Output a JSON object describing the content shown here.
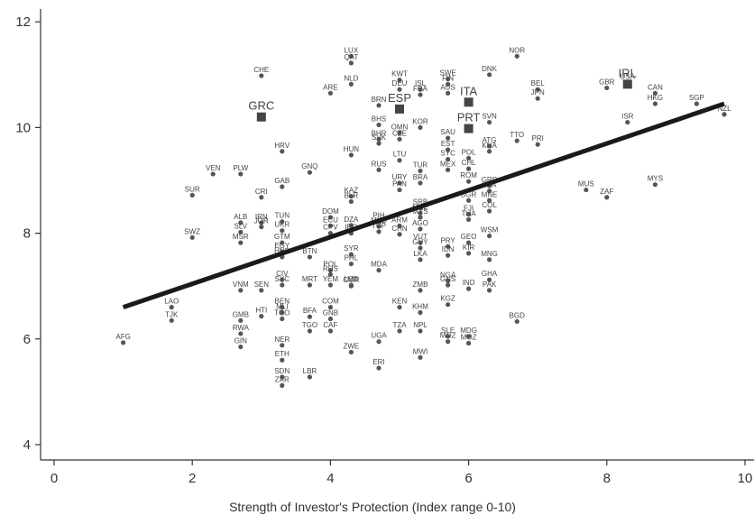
{
  "chart_data": {
    "type": "scatter",
    "title": "",
    "xlabel": "Strength of Investor's Protection (Index range 0-10)",
    "ylabel": "",
    "xlim": [
      -0.2,
      10.2
    ],
    "ylim": [
      3.8,
      12.3
    ],
    "xticks": [
      0,
      2,
      4,
      6,
      8,
      10
    ],
    "yticks": [
      4,
      6,
      8,
      10,
      12
    ],
    "grid": false,
    "point_color": "#555555",
    "highlight_color": "#444444",
    "fit_line_color": "#1a1a1a",
    "fit_line": {
      "x": [
        1.0,
        9.7
      ],
      "y": [
        6.6,
        10.45
      ]
    },
    "points": [
      {
        "label": "AFG",
        "x": 1.0,
        "y": 5.93
      },
      {
        "label": "LAO",
        "x": 1.7,
        "y": 6.6
      },
      {
        "label": "TJK",
        "x": 1.7,
        "y": 6.35
      },
      {
        "label": "SUR",
        "x": 2.0,
        "y": 8.72
      },
      {
        "label": "SWZ",
        "x": 2.0,
        "y": 7.92
      },
      {
        "label": "VEN",
        "x": 2.3,
        "y": 9.12
      },
      {
        "label": "PLW",
        "x": 2.7,
        "y": 9.12
      },
      {
        "label": "ALB",
        "x": 2.7,
        "y": 8.2
      },
      {
        "label": "SLV",
        "x": 2.7,
        "y": 8.02
      },
      {
        "label": "MSR",
        "x": 2.7,
        "y": 7.82
      },
      {
        "label": "VNM",
        "x": 2.7,
        "y": 6.92
      },
      {
        "label": "GMB",
        "x": 2.7,
        "y": 6.35
      },
      {
        "label": "RWA",
        "x": 2.7,
        "y": 6.1
      },
      {
        "label": "GIN",
        "x": 2.7,
        "y": 5.85
      },
      {
        "label": "CHE",
        "x": 3.0,
        "y": 10.98
      },
      {
        "label": "CRI",
        "x": 3.0,
        "y": 8.68
      },
      {
        "label": "IRN",
        "x": 3.0,
        "y": 8.2
      },
      {
        "label": "JOR",
        "x": 3.0,
        "y": 8.12
      },
      {
        "label": "SEN",
        "x": 3.0,
        "y": 6.92
      },
      {
        "label": "HTI",
        "x": 3.0,
        "y": 6.43
      },
      {
        "label": "HRV",
        "x": 3.3,
        "y": 9.55
      },
      {
        "label": "GAB",
        "x": 3.3,
        "y": 8.88
      },
      {
        "label": "TUN",
        "x": 3.3,
        "y": 8.22
      },
      {
        "label": "UKR",
        "x": 3.3,
        "y": 8.05
      },
      {
        "label": "GTM",
        "x": 3.3,
        "y": 7.82
      },
      {
        "label": "HND",
        "x": 3.3,
        "y": 7.55
      },
      {
        "label": "EGY",
        "x": 3.3,
        "y": 7.65
      },
      {
        "label": "CIV",
        "x": 3.3,
        "y": 7.12
      },
      {
        "label": "SYC",
        "x": 3.3,
        "y": 7.02
      },
      {
        "label": "BEN",
        "x": 3.3,
        "y": 6.6
      },
      {
        "label": "MLI",
        "x": 3.3,
        "y": 6.5
      },
      {
        "label": "TGO",
        "x": 3.3,
        "y": 6.38
      },
      {
        "label": "NER",
        "x": 3.3,
        "y": 5.88
      },
      {
        "label": "ETH",
        "x": 3.3,
        "y": 5.6
      },
      {
        "label": "SDN",
        "x": 3.3,
        "y": 5.28
      },
      {
        "label": "ZAR",
        "x": 3.3,
        "y": 5.12
      },
      {
        "label": "GNQ",
        "x": 3.7,
        "y": 9.15
      },
      {
        "label": "BTN",
        "x": 3.7,
        "y": 7.55
      },
      {
        "label": "MRT",
        "x": 3.7,
        "y": 7.02
      },
      {
        "label": "BFA",
        "x": 3.7,
        "y": 6.42
      },
      {
        "label": "TGO",
        "x": 3.7,
        "y": 6.15
      },
      {
        "label": "LBR",
        "x": 3.7,
        "y": 5.28
      },
      {
        "label": "ARE",
        "x": 4.0,
        "y": 10.65
      },
      {
        "label": "DOM",
        "x": 4.0,
        "y": 8.3
      },
      {
        "label": "ECU",
        "x": 4.0,
        "y": 8.14
      },
      {
        "label": "CPV",
        "x": 4.0,
        "y": 8.0
      },
      {
        "label": "POL",
        "x": 4.0,
        "y": 7.3
      },
      {
        "label": "RUS",
        "x": 4.0,
        "y": 7.22
      },
      {
        "label": "YEM",
        "x": 4.0,
        "y": 7.02
      },
      {
        "label": "COM",
        "x": 4.0,
        "y": 6.6
      },
      {
        "label": "GNB",
        "x": 4.0,
        "y": 6.38
      },
      {
        "label": "CAF",
        "x": 4.0,
        "y": 6.15
      },
      {
        "label": "LUX",
        "x": 4.3,
        "y": 11.35
      },
      {
        "label": "QAT",
        "x": 4.3,
        "y": 11.22
      },
      {
        "label": "NLD",
        "x": 4.3,
        "y": 10.82
      },
      {
        "label": "HUN",
        "x": 4.3,
        "y": 9.48
      },
      {
        "label": "KAZ",
        "x": 4.3,
        "y": 8.7
      },
      {
        "label": "BLR",
        "x": 4.3,
        "y": 8.6
      },
      {
        "label": "DZA",
        "x": 4.3,
        "y": 8.15
      },
      {
        "label": "IRQ",
        "x": 4.3,
        "y": 8.0
      },
      {
        "label": "SYR",
        "x": 4.3,
        "y": 7.6
      },
      {
        "label": "PHL",
        "x": 4.3,
        "y": 7.42
      },
      {
        "label": "UZB",
        "x": 4.3,
        "y": 7.02
      },
      {
        "label": "CMR",
        "x": 4.3,
        "y": 7.0
      },
      {
        "label": "ZWE",
        "x": 4.3,
        "y": 5.75
      },
      {
        "label": "BRN",
        "x": 4.7,
        "y": 10.42
      },
      {
        "label": "BHS",
        "x": 4.7,
        "y": 10.05
      },
      {
        "label": "BHR",
        "x": 4.7,
        "y": 9.78
      },
      {
        "label": "SVK",
        "x": 4.7,
        "y": 9.7
      },
      {
        "label": "RUS",
        "x": 4.7,
        "y": 9.2
      },
      {
        "label": "PIH",
        "x": 4.7,
        "y": 8.22
      },
      {
        "label": "MKD",
        "x": 4.7,
        "y": 8.13
      },
      {
        "label": "TUP",
        "x": 4.7,
        "y": 8.03
      },
      {
        "label": "MDA",
        "x": 4.7,
        "y": 7.3
      },
      {
        "label": "UGA",
        "x": 4.7,
        "y": 5.95
      },
      {
        "label": "ERI",
        "x": 4.7,
        "y": 5.45
      },
      {
        "label": "KWT",
        "x": 5.0,
        "y": 10.9
      },
      {
        "label": "DEU",
        "x": 5.0,
        "y": 10.72
      },
      {
        "label": "OMN",
        "x": 5.0,
        "y": 9.9
      },
      {
        "label": "CZE",
        "x": 5.0,
        "y": 9.78
      },
      {
        "label": "LTU",
        "x": 5.0,
        "y": 9.38
      },
      {
        "label": "URY",
        "x": 5.0,
        "y": 8.95
      },
      {
        "label": "PAN",
        "x": 5.0,
        "y": 8.82
      },
      {
        "label": "ARM",
        "x": 5.0,
        "y": 8.14
      },
      {
        "label": "CHN",
        "x": 5.0,
        "y": 7.98
      },
      {
        "label": "KEN",
        "x": 5.0,
        "y": 6.6
      },
      {
        "label": "TZA",
        "x": 5.0,
        "y": 6.15
      },
      {
        "label": "ISL",
        "x": 5.3,
        "y": 10.72
      },
      {
        "label": "FRA",
        "x": 5.3,
        "y": 10.62
      },
      {
        "label": "KOR",
        "x": 5.3,
        "y": 10.0
      },
      {
        "label": "TUR",
        "x": 5.3,
        "y": 9.18
      },
      {
        "label": "BRA",
        "x": 5.3,
        "y": 8.95
      },
      {
        "label": "SRB",
        "x": 5.3,
        "y": 8.48
      },
      {
        "label": "MNE",
        "x": 5.3,
        "y": 8.38
      },
      {
        "label": "MYS",
        "x": 5.3,
        "y": 8.3
      },
      {
        "label": "AGO",
        "x": 5.3,
        "y": 8.08
      },
      {
        "label": "VUT",
        "x": 5.3,
        "y": 7.82
      },
      {
        "label": "GUY",
        "x": 5.3,
        "y": 7.72
      },
      {
        "label": "LKA",
        "x": 5.3,
        "y": 7.5
      },
      {
        "label": "ZMB",
        "x": 5.3,
        "y": 6.92
      },
      {
        "label": "KHM",
        "x": 5.3,
        "y": 6.5
      },
      {
        "label": "NPL",
        "x": 5.3,
        "y": 6.15
      },
      {
        "label": "MWI",
        "x": 5.3,
        "y": 5.65
      },
      {
        "label": "SWE",
        "x": 5.7,
        "y": 10.92
      },
      {
        "label": "FIN",
        "x": 5.7,
        "y": 10.82
      },
      {
        "label": "AUS",
        "x": 5.7,
        "y": 10.65
      },
      {
        "label": "SAU",
        "x": 5.7,
        "y": 9.8
      },
      {
        "label": "EST",
        "x": 5.7,
        "y": 9.58
      },
      {
        "label": "SYC",
        "x": 5.7,
        "y": 9.4
      },
      {
        "label": "MEX",
        "x": 5.7,
        "y": 9.2
      },
      {
        "label": "PRY",
        "x": 5.7,
        "y": 7.75
      },
      {
        "label": "IDN",
        "x": 5.7,
        "y": 7.58
      },
      {
        "label": "NGA",
        "x": 5.7,
        "y": 7.1
      },
      {
        "label": "GNS",
        "x": 5.7,
        "y": 7.02
      },
      {
        "label": "KGZ",
        "x": 5.7,
        "y": 6.65
      },
      {
        "label": "SLE",
        "x": 5.7,
        "y": 6.05
      },
      {
        "label": "MOZ",
        "x": 5.7,
        "y": 5.95
      },
      {
        "label": "POL",
        "x": 6.0,
        "y": 9.42
      },
      {
        "label": "CHL",
        "x": 6.0,
        "y": 9.22
      },
      {
        "label": "ROM",
        "x": 6.0,
        "y": 8.98
      },
      {
        "label": "BGR",
        "x": 6.0,
        "y": 8.62
      },
      {
        "label": "FJI",
        "x": 6.0,
        "y": 8.36
      },
      {
        "label": "THA",
        "x": 6.0,
        "y": 8.26
      },
      {
        "label": "GEO",
        "x": 6.0,
        "y": 7.82
      },
      {
        "label": "KIR",
        "x": 6.0,
        "y": 7.62
      },
      {
        "label": "IND",
        "x": 6.0,
        "y": 6.95
      },
      {
        "label": "MDG",
        "x": 6.0,
        "y": 6.05
      },
      {
        "label": "MOZ",
        "x": 6.0,
        "y": 5.92
      },
      {
        "label": "DNK",
        "x": 6.3,
        "y": 11.0
      },
      {
        "label": "SVN",
        "x": 6.3,
        "y": 10.1
      },
      {
        "label": "ATG",
        "x": 6.3,
        "y": 9.65
      },
      {
        "label": "KNA",
        "x": 6.3,
        "y": 9.55
      },
      {
        "label": "GRD",
        "x": 6.3,
        "y": 8.9
      },
      {
        "label": "LCA",
        "x": 6.3,
        "y": 8.8
      },
      {
        "label": "MNE",
        "x": 6.3,
        "y": 8.62
      },
      {
        "label": "COL",
        "x": 6.3,
        "y": 8.42
      },
      {
        "label": "WSM",
        "x": 6.3,
        "y": 7.95
      },
      {
        "label": "MNG",
        "x": 6.3,
        "y": 7.5
      },
      {
        "label": "GHA",
        "x": 6.3,
        "y": 7.12
      },
      {
        "label": "PAK",
        "x": 6.3,
        "y": 6.92
      },
      {
        "label": "NOR",
        "x": 6.7,
        "y": 11.35
      },
      {
        "label": "TTO",
        "x": 6.7,
        "y": 9.75
      },
      {
        "label": "BGD",
        "x": 6.7,
        "y": 6.33
      },
      {
        "label": "BEL",
        "x": 7.0,
        "y": 10.72
      },
      {
        "label": "JPN",
        "x": 7.0,
        "y": 10.55
      },
      {
        "label": "PRI",
        "x": 7.0,
        "y": 9.68
      },
      {
        "label": "MUS",
        "x": 7.7,
        "y": 8.82
      },
      {
        "label": "ZAF",
        "x": 8.0,
        "y": 8.68
      },
      {
        "label": "GBR",
        "x": 8.0,
        "y": 10.75
      },
      {
        "label": "USA",
        "x": 8.3,
        "y": 10.85
      },
      {
        "label": "ISR",
        "x": 8.3,
        "y": 10.1
      },
      {
        "label": "CAN",
        "x": 8.7,
        "y": 10.65
      },
      {
        "label": "HKG",
        "x": 8.7,
        "y": 10.45
      },
      {
        "label": "MYS",
        "x": 8.7,
        "y": 8.92
      },
      {
        "label": "SGP",
        "x": 9.3,
        "y": 10.45
      },
      {
        "label": "NZL",
        "x": 9.7,
        "y": 10.25
      }
    ],
    "highlighted_points": [
      {
        "label": "GRC",
        "x": 3.0,
        "y": 10.2
      },
      {
        "label": "ESP",
        "x": 5.0,
        "y": 10.35
      },
      {
        "label": "ITA",
        "x": 6.0,
        "y": 10.48
      },
      {
        "label": "PRT",
        "x": 6.0,
        "y": 9.98
      },
      {
        "label": "IRL",
        "x": 8.3,
        "y": 10.82
      }
    ]
  }
}
